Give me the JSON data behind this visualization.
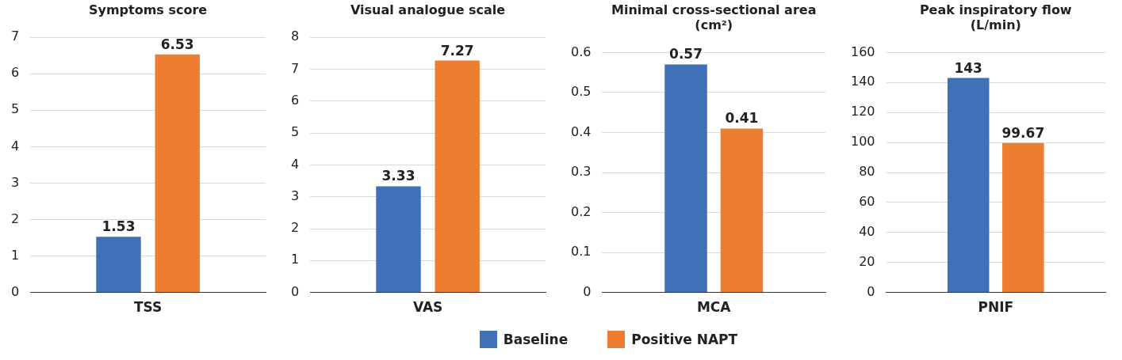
{
  "chart_data": [
    {
      "type": "bar",
      "title": "Symptoms score",
      "categories": [
        "TSS"
      ],
      "series": [
        {
          "name": "Baseline",
          "color": "#4070b8",
          "values": [
            1.53
          ]
        },
        {
          "name": "Positive NAPT",
          "color": "#ed7d31",
          "values": [
            6.53
          ]
        }
      ],
      "ylim": [
        0,
        7
      ],
      "yticks": [
        0,
        1,
        2,
        3,
        4,
        5,
        6,
        7
      ],
      "grid": "y",
      "data_labels": true,
      "legend": "bottom"
    },
    {
      "type": "bar",
      "title": "Visual analogue scale",
      "categories": [
        "VAS"
      ],
      "series": [
        {
          "name": "Baseline",
          "color": "#4070b8",
          "values": [
            3.33
          ]
        },
        {
          "name": "Positive NAPT",
          "color": "#ed7d31",
          "values": [
            7.27
          ]
        }
      ],
      "ylim": [
        0,
        8
      ],
      "yticks": [
        0,
        1,
        2,
        3,
        4,
        5,
        6,
        7,
        8
      ],
      "grid": "y",
      "data_labels": true
    },
    {
      "type": "bar",
      "title": "Minimal cross-sectional area\n(cm²)",
      "categories": [
        "MCA"
      ],
      "series": [
        {
          "name": "Baseline",
          "color": "#4070b8",
          "values": [
            0.57
          ]
        },
        {
          "name": "Positive NAPT",
          "color": "#ed7d31",
          "values": [
            0.41
          ]
        }
      ],
      "ylim": [
        0,
        0.6
      ],
      "yticks": [
        0,
        0.1,
        0.2,
        0.3,
        0.4,
        0.5,
        0.6
      ],
      "grid": "y",
      "data_labels": true
    },
    {
      "type": "bar",
      "title": "Peak inspiratory flow\n(L/min)",
      "categories": [
        "PNIF"
      ],
      "series": [
        {
          "name": "Baseline",
          "color": "#4070b8",
          "values": [
            143
          ]
        },
        {
          "name": "Positive NAPT",
          "color": "#ed7d31",
          "values": [
            99.67
          ]
        }
      ],
      "ylim": [
        0,
        160
      ],
      "yticks": [
        0,
        20,
        40,
        60,
        80,
        100,
        120,
        140,
        160
      ],
      "grid": "y",
      "data_labels": true
    }
  ]
}
